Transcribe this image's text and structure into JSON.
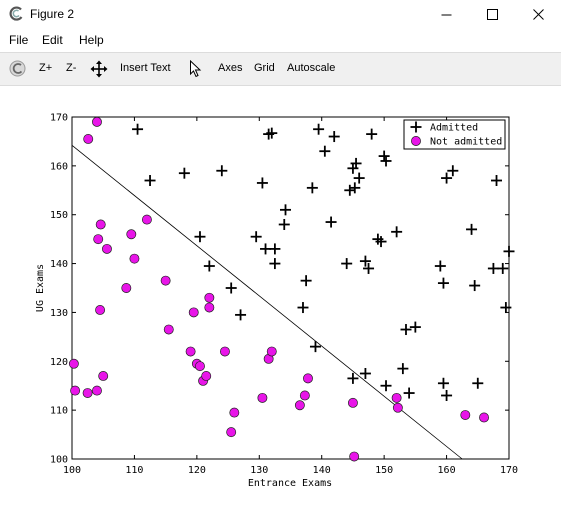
{
  "window": {
    "title": "Figure 2"
  },
  "menu": {
    "items": [
      "File",
      "Edit",
      "Help"
    ]
  },
  "toolbar": {
    "zoom_in": "Z+",
    "zoom_out": "Z-",
    "insert_text": "Insert Text",
    "axes": "Axes",
    "grid": "Grid",
    "autoscale": "Autoscale"
  },
  "chart_data": {
    "type": "scatter",
    "xlabel": "Entrance Exams",
    "ylabel": "UG Exams",
    "xlim": [
      100,
      170
    ],
    "ylim": [
      100,
      170
    ],
    "xticks": [
      100,
      110,
      120,
      130,
      140,
      150,
      160,
      170
    ],
    "yticks": [
      100,
      110,
      120,
      130,
      140,
      150,
      160,
      170
    ],
    "legend_placement": "top-right",
    "decision_boundary": {
      "points": [
        [
          100,
          164.2
        ],
        [
          162.5,
          100
        ]
      ]
    },
    "series": [
      {
        "name": "Admitted",
        "marker": "plus",
        "color": "#000000",
        "points": [
          [
            110.5,
            167.5
          ],
          [
            112.5,
            157
          ],
          [
            118,
            158.5
          ],
          [
            124,
            159
          ],
          [
            120.5,
            145.5
          ],
          [
            122,
            139.5
          ],
          [
            125.5,
            135
          ],
          [
            127,
            129.5
          ],
          [
            129.5,
            145.5
          ],
          [
            130.5,
            156.5
          ],
          [
            131,
            143
          ],
          [
            131.5,
            166.5
          ],
          [
            132,
            166.7
          ],
          [
            132.5,
            143
          ],
          [
            132.5,
            140
          ],
          [
            134,
            148
          ],
          [
            134.2,
            151
          ],
          [
            137,
            131
          ],
          [
            137.5,
            136.5
          ],
          [
            138.5,
            155.5
          ],
          [
            139,
            123
          ],
          [
            139.5,
            167.5
          ],
          [
            140.5,
            163
          ],
          [
            141.5,
            148.5
          ],
          [
            142,
            166
          ],
          [
            144,
            140
          ],
          [
            144.5,
            155
          ],
          [
            145,
            159.5
          ],
          [
            145,
            116.5
          ],
          [
            145.3,
            155.5
          ],
          [
            145.5,
            160.5
          ],
          [
            146,
            157.5
          ],
          [
            147,
            140.5
          ],
          [
            147,
            117.5
          ],
          [
            147.5,
            139
          ],
          [
            148,
            166.5
          ],
          [
            149,
            145
          ],
          [
            149.5,
            144.5
          ],
          [
            150,
            162
          ],
          [
            150.3,
            161
          ],
          [
            150.3,
            115
          ],
          [
            152,
            146.5
          ],
          [
            153,
            118.5
          ],
          [
            153.5,
            126.5
          ],
          [
            154,
            113.5
          ],
          [
            155,
            127
          ],
          [
            159,
            139.5
          ],
          [
            159.5,
            136
          ],
          [
            159.5,
            115.5
          ],
          [
            160,
            113
          ],
          [
            160,
            157.5
          ],
          [
            161,
            159
          ],
          [
            164,
            147
          ],
          [
            164.5,
            135.5
          ],
          [
            165,
            115.5
          ],
          [
            167.5,
            139
          ],
          [
            168,
            157
          ],
          [
            169,
            139
          ],
          [
            169.5,
            131
          ],
          [
            170,
            142.5
          ]
        ]
      },
      {
        "name": "Not admitted",
        "marker": "circle",
        "color": "#e815e8",
        "points": [
          [
            100.3,
            119.5
          ],
          [
            100.5,
            114
          ],
          [
            102.5,
            113.5
          ],
          [
            102.6,
            165.5
          ],
          [
            104,
            169
          ],
          [
            104,
            114
          ],
          [
            104.2,
            145
          ],
          [
            104.5,
            130.5
          ],
          [
            104.6,
            148
          ],
          [
            105,
            117
          ],
          [
            105.6,
            143
          ],
          [
            108.7,
            135
          ],
          [
            109.5,
            146
          ],
          [
            110,
            141
          ],
          [
            112,
            149
          ],
          [
            115,
            136.5
          ],
          [
            115.5,
            126.5
          ],
          [
            119,
            122
          ],
          [
            119.5,
            130
          ],
          [
            120,
            119.5
          ],
          [
            120.5,
            119
          ],
          [
            121,
            116
          ],
          [
            121.5,
            117
          ],
          [
            122,
            133
          ],
          [
            122,
            131
          ],
          [
            124.5,
            122
          ],
          [
            125.5,
            105.5
          ],
          [
            126,
            109.5
          ],
          [
            130.5,
            112.5
          ],
          [
            131.5,
            120.5
          ],
          [
            132,
            122
          ],
          [
            136.5,
            111
          ],
          [
            137.3,
            113
          ],
          [
            137.8,
            116.5
          ],
          [
            145,
            111.5
          ],
          [
            145.2,
            100.5
          ],
          [
            152,
            112.5
          ],
          [
            152.2,
            110.5
          ],
          [
            163,
            109
          ],
          [
            166,
            108.5
          ]
        ]
      }
    ]
  }
}
